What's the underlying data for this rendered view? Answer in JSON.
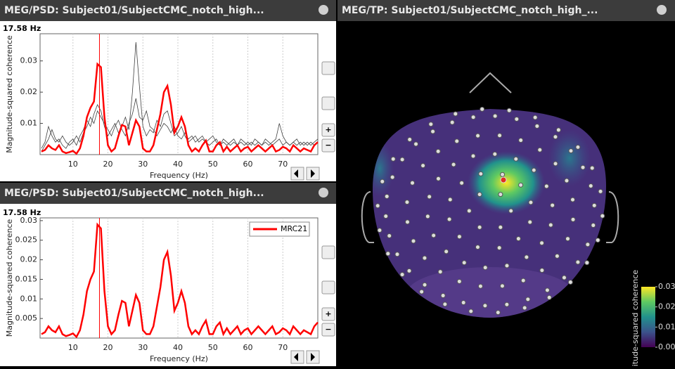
{
  "windows": [
    {
      "title": "MEG/PSD: Subject01/SubjectCMC_notch_high..."
    },
    {
      "title": "MEG/PSD: Subject01/SubjectCMC_notch_high..."
    },
    {
      "title": "MEG/TP: Subject01/SubjectCMC_notch_high_..."
    }
  ],
  "buttons": [
    "+",
    "−"
  ],
  "chart_data": [
    {
      "type": "line",
      "xlabel": "Frequency (Hz)",
      "ylabel": "Magnitude-squared coherence",
      "cursor": {
        "value": 17.58,
        "label": "17.58 Hz"
      },
      "cursor_color": "#ff0000",
      "xlim": [
        0.6,
        80
      ],
      "xticks": [
        10,
        20,
        30,
        40,
        50,
        60,
        70
      ],
      "ylim": [
        0,
        0.0387
      ],
      "yticks": [
        0.01,
        0.02,
        0.03
      ],
      "grid": true,
      "x": [
        1,
        2,
        3,
        4,
        5,
        6,
        7,
        8,
        9,
        10,
        11,
        12,
        13,
        14,
        15,
        16,
        17,
        18,
        19,
        20,
        21,
        22,
        23,
        24,
        25,
        26,
        27,
        28,
        29,
        30,
        31,
        32,
        33,
        34,
        35,
        36,
        37,
        38,
        39,
        40,
        41,
        42,
        43,
        44,
        45,
        46,
        47,
        48,
        49,
        50,
        51,
        52,
        53,
        54,
        55,
        56,
        57,
        58,
        59,
        60,
        61,
        62,
        63,
        64,
        65,
        66,
        67,
        68,
        69,
        70,
        71,
        72,
        73,
        74,
        75,
        76,
        77,
        78,
        79,
        80
      ],
      "series": [
        {
          "color": "#404040",
          "values": [
            0.002,
            0.004,
            0.009,
            0.006,
            0.004,
            0.005,
            0.003,
            0.002,
            0.004,
            0.005,
            0.003,
            0.006,
            0.008,
            0.011,
            0.009,
            0.013,
            0.016,
            0.014,
            0.009,
            0.006,
            0.008,
            0.01,
            0.007,
            0.009,
            0.012,
            0.008,
            0.02,
            0.036,
            0.022,
            0.009,
            0.006,
            0.008,
            0.007,
            0.011,
            0.009,
            0.013,
            0.014,
            0.01,
            0.006,
            0.007,
            0.009,
            0.006,
            0.004,
            0.005,
            0.006,
            0.004,
            0.005,
            0.004,
            0.003,
            0.004,
            0.005,
            0.003,
            0.004,
            0.003,
            0.004,
            0.005,
            0.003,
            0.004,
            0.003,
            0.004,
            0.003,
            0.005,
            0.004,
            0.003,
            0.004,
            0.003,
            0.004,
            0.005,
            0.01,
            0.006,
            0.004,
            0.003,
            0.004,
            0.003,
            0.004,
            0.003,
            0.004,
            0.003,
            0.004,
            0.005
          ]
        },
        {
          "color": "#404040",
          "values": [
            0.001,
            0.003,
            0.005,
            0.008,
            0.005,
            0.004,
            0.006,
            0.004,
            0.003,
            0.004,
            0.006,
            0.004,
            0.007,
            0.009,
            0.012,
            0.01,
            0.014,
            0.012,
            0.01,
            0.008,
            0.006,
            0.009,
            0.011,
            0.008,
            0.006,
            0.01,
            0.013,
            0.018,
            0.012,
            0.011,
            0.014,
            0.009,
            0.008,
            0.006,
            0.008,
            0.01,
            0.009,
            0.007,
            0.009,
            0.006,
            0.005,
            0.007,
            0.005,
            0.006,
            0.004,
            0.005,
            0.006,
            0.004,
            0.005,
            0.006,
            0.004,
            0.003,
            0.005,
            0.004,
            0.003,
            0.004,
            0.003,
            0.005,
            0.004,
            0.003,
            0.004,
            0.003,
            0.004,
            0.003,
            0.005,
            0.004,
            0.003,
            0.004,
            0.005,
            0.003,
            0.004,
            0.003,
            0.004,
            0.005,
            0.003,
            0.004,
            0.003,
            0.004,
            0.003,
            0.004
          ]
        },
        {
          "color": "#ff0000",
          "values": [
            0.001,
            0.0015,
            0.003,
            0.002,
            0.0015,
            0.003,
            0.001,
            0.0005,
            0.0008,
            0.0012,
            0.0003,
            0.002,
            0.006,
            0.012,
            0.015,
            0.017,
            0.029,
            0.028,
            0.012,
            0.003,
            0.001,
            0.002,
            0.006,
            0.0095,
            0.009,
            0.003,
            0.007,
            0.011,
            0.009,
            0.002,
            0.001,
            0.001,
            0.003,
            0.008,
            0.013,
            0.02,
            0.022,
            0.016,
            0.007,
            0.009,
            0.012,
            0.009,
            0.003,
            0.001,
            0.002,
            0.001,
            0.003,
            0.0045,
            0.001,
            0.001,
            0.003,
            0.004,
            0.001,
            0.0025,
            0.001,
            0.002,
            0.003,
            0.001,
            0.002,
            0.0025,
            0.001,
            0.002,
            0.003,
            0.002,
            0.001,
            0.002,
            0.003,
            0.001,
            0.0015,
            0.0025,
            0.002,
            0.001,
            0.003,
            0.002,
            0.001,
            0.002,
            0.0015,
            0.001,
            0.003,
            0.004
          ]
        }
      ]
    },
    {
      "type": "line",
      "xlabel": "Frequency (Hz)",
      "ylabel": "Magnitude-squared coherence",
      "cursor": {
        "value": 17.58,
        "label": "17.58 Hz"
      },
      "cursor_color": "#ff0000",
      "legend": "upper right",
      "xlim": [
        0.6,
        80
      ],
      "xticks": [
        10,
        20,
        30,
        40,
        50,
        60,
        70
      ],
      "ylim": [
        0,
        0.0307
      ],
      "yticks": [
        0.005,
        0.01,
        0.015,
        0.02,
        0.025,
        0.03
      ],
      "grid": true,
      "x": [
        1,
        2,
        3,
        4,
        5,
        6,
        7,
        8,
        9,
        10,
        11,
        12,
        13,
        14,
        15,
        16,
        17,
        18,
        19,
        20,
        21,
        22,
        23,
        24,
        25,
        26,
        27,
        28,
        29,
        30,
        31,
        32,
        33,
        34,
        35,
        36,
        37,
        38,
        39,
        40,
        41,
        42,
        43,
        44,
        45,
        46,
        47,
        48,
        49,
        50,
        51,
        52,
        53,
        54,
        55,
        56,
        57,
        58,
        59,
        60,
        61,
        62,
        63,
        64,
        65,
        66,
        67,
        68,
        69,
        70,
        71,
        72,
        73,
        74,
        75,
        76,
        77,
        78,
        79,
        80
      ],
      "series": [
        {
          "name": "MRC21",
          "color": "#ff0000",
          "values": [
            0.001,
            0.0015,
            0.003,
            0.002,
            0.0015,
            0.003,
            0.001,
            0.0005,
            0.0008,
            0.0012,
            0.0003,
            0.002,
            0.006,
            0.012,
            0.015,
            0.017,
            0.029,
            0.028,
            0.012,
            0.003,
            0.001,
            0.002,
            0.006,
            0.0095,
            0.009,
            0.003,
            0.007,
            0.011,
            0.009,
            0.002,
            0.001,
            0.001,
            0.003,
            0.008,
            0.013,
            0.02,
            0.022,
            0.016,
            0.007,
            0.009,
            0.012,
            0.009,
            0.003,
            0.001,
            0.002,
            0.001,
            0.003,
            0.0045,
            0.001,
            0.001,
            0.003,
            0.004,
            0.001,
            0.0025,
            0.001,
            0.002,
            0.003,
            0.001,
            0.002,
            0.0025,
            0.001,
            0.002,
            0.003,
            0.002,
            0.001,
            0.002,
            0.003,
            0.001,
            0.0015,
            0.0025,
            0.002,
            0.001,
            0.003,
            0.002,
            0.001,
            0.002,
            0.0015,
            0.001,
            0.003,
            0.004
          ]
        }
      ]
    },
    {
      "type": "colorbar",
      "label": "nitude-squared coherence",
      "colormap": [
        "#440154",
        "#3b528b",
        "#21918c",
        "#5ec962",
        "#fde725"
      ],
      "ylim": [
        0,
        0.03
      ],
      "yticks": [
        {
          "value": 0,
          "label": "0.00"
        },
        {
          "value": 0.01,
          "label": "0.01"
        },
        {
          "value": 0.02,
          "label": "0.02"
        },
        {
          "value": 0.03,
          "label": "0.03"
        }
      ]
    }
  ]
}
